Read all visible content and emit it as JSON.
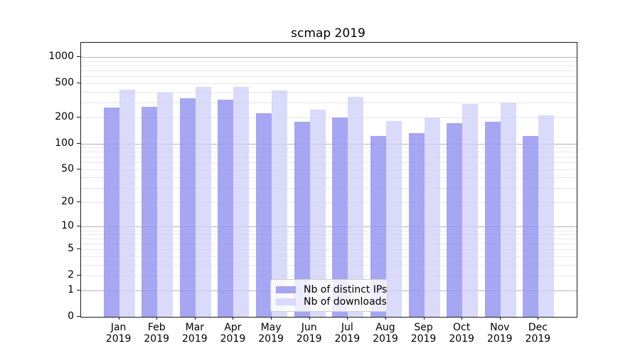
{
  "chart_data": {
    "type": "bar",
    "title": "scmap 2019",
    "categories": [
      "Jan",
      "Feb",
      "Mar",
      "Apr",
      "May",
      "Jun",
      "Jul",
      "Aug",
      "Sep",
      "Oct",
      "Nov",
      "Dec"
    ],
    "year_label": "2019",
    "series": [
      {
        "name": "Nb of distinct IPs",
        "color": "#9797f0",
        "alpha": 0.85,
        "values": [
          260,
          265,
          334,
          321,
          224,
          179,
          199,
          122,
          133,
          172,
          180,
          122
        ]
      },
      {
        "name": "Nb of downloads",
        "color": "#d0d0f8",
        "alpha": 0.78,
        "values": [
          425,
          392,
          455,
          452,
          415,
          248,
          350,
          183,
          202,
          289,
          297,
          213
        ]
      }
    ],
    "yscale": "log1p",
    "ylim": [
      0,
      1475
    ],
    "yticks": [
      0,
      1,
      2,
      5,
      10,
      20,
      50,
      100,
      200,
      500,
      1000
    ],
    "grid": {
      "major_lines": [
        1,
        10,
        100,
        1000
      ],
      "minor_subs": [
        2,
        3,
        4,
        5,
        6,
        7,
        8,
        9
      ],
      "minor_decades": [
        1,
        10,
        100
      ]
    },
    "legend_position": "lower-center",
    "colors": {
      "major_grid": "#b4b4b4",
      "minor_grid": "#e8e8e8",
      "spine": "#1a1a1a",
      "text": "#000000"
    }
  }
}
